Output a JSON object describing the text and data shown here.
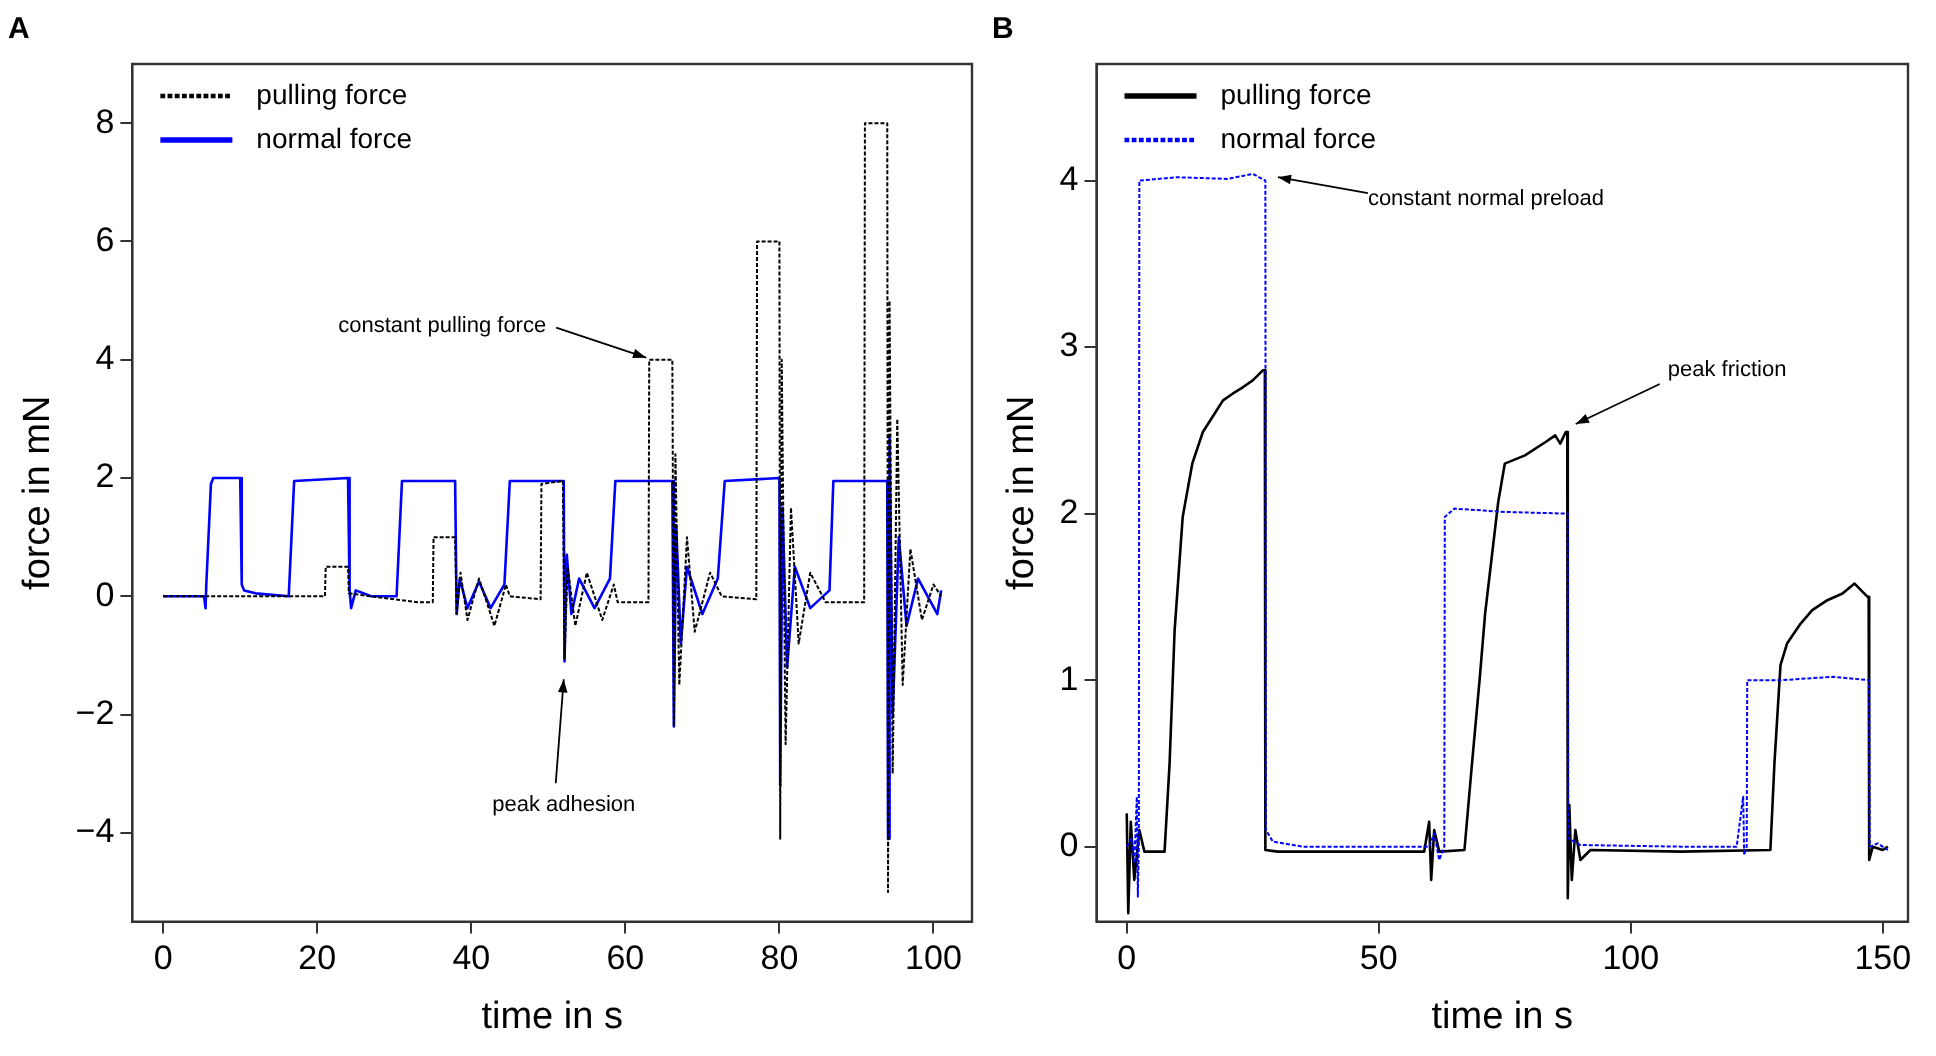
{
  "chart_data": [
    {
      "type": "line",
      "title": "A",
      "xlabel": "time in s",
      "ylabel": "force in mN",
      "xlim": [
        -4,
        105
      ],
      "xticks": [
        0,
        20,
        40,
        60,
        80,
        100
      ],
      "ylim": [
        -5.5,
        9
      ],
      "yticks": [
        {
          "value": -4,
          "label": "−4"
        },
        {
          "value": -2,
          "label": "−2"
        },
        0,
        2,
        4,
        6,
        8
      ],
      "grid": false,
      "legend": "top left",
      "series": [
        {
          "name": "pulling force",
          "color": "#000000",
          "line_style": "dotted",
          "x": [
            0,
            21,
            21.1,
            24,
            24.1,
            27,
            33,
            35,
            35.1,
            37.9,
            38.1,
            38.6,
            39.5,
            41,
            43,
            44.5,
            45,
            49,
            49.1,
            51.9,
            52.1,
            52.5,
            53.5,
            55,
            57,
            58.5,
            59,
            63,
            63.1,
            66.1,
            66.3,
            66.5,
            67,
            68,
            69,
            71,
            72.5,
            77,
            77.1,
            80,
            80.1,
            80.3,
            80.8,
            81.5,
            82.5,
            84,
            86,
            91,
            91.1,
            94,
            94.1,
            94.3,
            94.7,
            95.3,
            96,
            97,
            98.5,
            100,
            101
          ],
          "values": [
            0,
            0,
            0.5,
            0.5,
            0.05,
            0,
            -0.1,
            -0.1,
            1,
            1,
            -0.3,
            0.4,
            -0.4,
            0.3,
            -0.5,
            0.2,
            0,
            -0.05,
            1.9,
            1.95,
            -1.05,
            0.5,
            -0.5,
            0.4,
            -0.4,
            0.2,
            -0.1,
            -0.1,
            4,
            4,
            -2.2,
            2.4,
            -1.5,
            1,
            -0.6,
            0.4,
            0,
            -0.05,
            6,
            6,
            -4.1,
            4,
            -2.5,
            1.5,
            -0.8,
            0.4,
            -0.1,
            -0.1,
            8,
            8,
            -5,
            5,
            -3,
            3,
            -1.5,
            0.8,
            -0.4,
            0.2,
            0
          ]
        },
        {
          "name": "normal force",
          "color": "#0000ff",
          "line_style": "solid",
          "x": [
            0,
            5.3,
            5.5,
            5.6,
            6.2,
            6.5,
            10,
            10.2,
            10.5,
            12,
            16.3,
            17,
            24,
            24.2,
            24.4,
            25,
            27,
            30.3,
            31,
            37.9,
            38.1,
            38.5,
            39.5,
            41,
            42.5,
            44.3,
            45,
            52,
            52.1,
            52.4,
            53,
            54,
            56,
            58,
            58.7,
            66.1,
            66.3,
            66.6,
            67.2,
            68,
            70,
            72,
            72.9,
            80,
            80.1,
            80.4,
            81,
            82,
            84,
            86.5,
            87,
            94,
            94.1,
            94.3,
            94.7,
            95.5,
            96.5,
            98,
            100.5,
            101
          ],
          "values": [
            0,
            0,
            -0.2,
            0.2,
            1.9,
            2,
            2,
            0.2,
            0.1,
            0.05,
            0,
            1.95,
            2,
            0.1,
            -0.2,
            0.1,
            0,
            0,
            1.95,
            1.95,
            -0.3,
            0.3,
            -0.2,
            0.25,
            -0.2,
            0.2,
            1.95,
            1.95,
            -1.1,
            0.7,
            -0.3,
            0.3,
            -0.2,
            0.3,
            1.95,
            1.95,
            -2.2,
            1.2,
            -0.8,
            0.5,
            -0.3,
            0.3,
            1.95,
            2,
            -3.2,
            1.5,
            -1.2,
            0.5,
            -0.2,
            0.1,
            1.95,
            1.95,
            -4.1,
            2.7,
            -2,
            1,
            -0.5,
            0.3,
            -0.3,
            0.1
          ]
        }
      ],
      "annotations": [
        {
          "text": "constant pulling force",
          "x": 64,
          "y": 4
        },
        {
          "text": "peak adhesion",
          "x": 52,
          "y": -1.2
        }
      ]
    },
    {
      "type": "line",
      "title": "B",
      "xlabel": "time in s",
      "ylabel": "force in mN",
      "xlim": [
        -6,
        155
      ],
      "xticks": [
        0,
        50,
        100,
        150
      ],
      "ylim": [
        -0.45,
        4.7
      ],
      "yticks": [
        0,
        1,
        2,
        3,
        4
      ],
      "grid": false,
      "legend": "top left",
      "series": [
        {
          "name": "pulling force",
          "color": "#000000",
          "line_style": "solid",
          "x": [
            0,
            0.3,
            0.8,
            1.5,
            2.5,
            3.5,
            7.5,
            8.5,
            9.5,
            11.1,
            13,
            15.1,
            17,
            19.1,
            21,
            23.1,
            25,
            27,
            27.4,
            27.5,
            30,
            45,
            59,
            60,
            60.4,
            61,
            62,
            67,
            68.5,
            70,
            71.1,
            73.7,
            75,
            79,
            83.1,
            85,
            86,
            87.1,
            87.4,
            87.5,
            87.8,
            88.3,
            89,
            90,
            92,
            110,
            127.7,
            128.5,
            129.7,
            131,
            133.7,
            136,
            139,
            142,
            144.4,
            146,
            147,
            147.2,
            147.3,
            148,
            150,
            151
          ],
          "values": [
            0.2,
            -0.4,
            0.15,
            -0.2,
            0.1,
            -0.03,
            -0.03,
            0.5,
            1.3,
            1.98,
            2.3,
            2.49,
            2.58,
            2.68,
            2.72,
            2.76,
            2.8,
            2.86,
            2.86,
            -0.02,
            -0.03,
            -0.03,
            -0.03,
            0.15,
            -0.2,
            0.1,
            -0.03,
            -0.02,
            0.5,
            1,
            1.4,
            2.07,
            2.3,
            2.35,
            2.43,
            2.47,
            2.42,
            2.49,
            2.49,
            -0.31,
            0.25,
            -0.2,
            0.1,
            -0.08,
            -0.02,
            -0.03,
            -0.02,
            0.5,
            1.09,
            1.22,
            1.34,
            1.42,
            1.48,
            1.52,
            1.58,
            1.53,
            1.5,
            1.5,
            -0.08,
            0,
            -0.02,
            0
          ]
        },
        {
          "name": "normal force",
          "color": "#0000ff",
          "line_style": "dotted",
          "x": [
            0,
            1,
            1.5,
            2,
            2.2,
            2.4,
            2.5,
            10,
            20,
            25,
            27.5,
            27.6,
            29,
            35,
            60,
            61,
            62,
            63,
            63.1,
            65,
            75,
            87.5,
            87.6,
            90,
            110,
            121,
            122.3,
            122.5,
            123,
            123.1,
            130,
            140,
            147.3,
            147.4,
            149,
            151
          ],
          "values": [
            0,
            0.05,
            -0.1,
            0.3,
            -0.3,
            0,
            4,
            4.02,
            4.01,
            4.04,
            4,
            0.1,
            0.03,
            0,
            0,
            0.08,
            -0.08,
            0,
            1.98,
            2.03,
            2.01,
            2,
            0.05,
            0.01,
            0,
            0,
            0.3,
            -0.05,
            0,
            1,
            1,
            1.02,
            1,
            0,
            0.02,
            -0.02
          ]
        }
      ],
      "annotations": [
        {
          "text": "constant normal preload",
          "x": 28,
          "y": 4.02
        },
        {
          "text": "peak friction",
          "x": 87.5,
          "y": 2.49
        }
      ]
    }
  ]
}
